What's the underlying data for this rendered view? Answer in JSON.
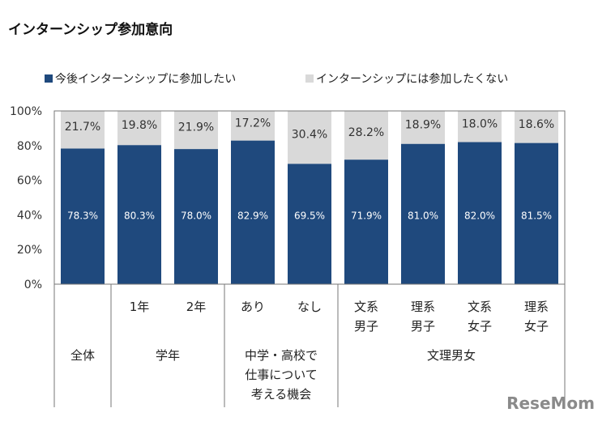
{
  "title": "インターンシップ参加意向",
  "watermark": "ReseMom",
  "chart_data": {
    "type": "bar",
    "stacked": true,
    "legend_position": "top",
    "categories": [
      "全体",
      "1年",
      "2年",
      "あり",
      "なし",
      "文系男子",
      "理系男子",
      "文系女子",
      "理系女子"
    ],
    "groups": [
      {
        "label": "全体",
        "members": [
          0
        ]
      },
      {
        "label": "学年",
        "members": [
          1,
          2
        ]
      },
      {
        "label": "中学・高校で仕事について考える機会",
        "members": [
          3,
          4
        ]
      },
      {
        "label": "文理男女",
        "members": [
          5,
          6,
          7,
          8
        ]
      }
    ],
    "series": [
      {
        "name": "今後インターンシップに参加したい",
        "color": "#1f497d",
        "values": [
          78.3,
          80.3,
          78.0,
          82.9,
          69.5,
          71.9,
          81.0,
          82.0,
          81.5
        ]
      },
      {
        "name": "インターンシップには参加したくない",
        "color": "#d9d9d9",
        "values": [
          21.7,
          19.8,
          21.9,
          17.2,
          30.4,
          28.2,
          18.9,
          18.0,
          18.6
        ]
      }
    ],
    "yticks": [
      "0%",
      "20%",
      "40%",
      "60%",
      "80%",
      "100%"
    ],
    "ylim": [
      0,
      100
    ],
    "grid": false
  }
}
